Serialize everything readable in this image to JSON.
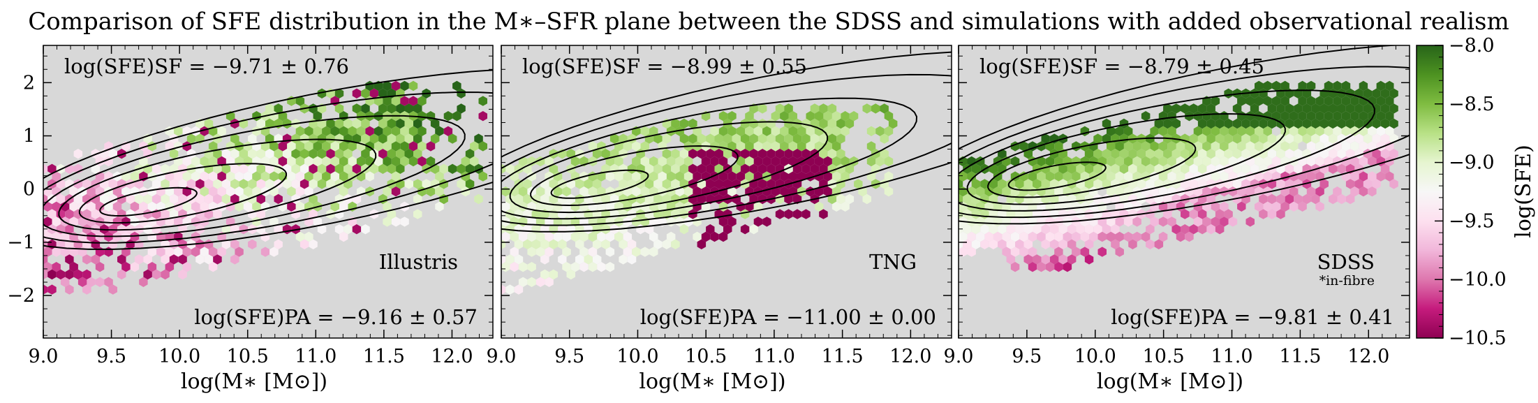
{
  "title": "Comparison of SFE distribution in the M∗–SFR plane between the SDSS and simulations with added observational realism",
  "chart_data": [
    {
      "type": "heatmap",
      "name": "Illustris",
      "label": "Illustris",
      "sub_label": "",
      "annot_sf": "log(SFE)SF = −9.71 ± 0.76",
      "annot_pa": "log(SFE)PA = −9.16 ± 0.57",
      "xlabel": "log(M∗ [M⊙])",
      "ylabel": "",
      "xlim": [
        9.0,
        12.3
      ],
      "ylim": [
        -2.8,
        2.7
      ],
      "xticks": [
        "9.0",
        "9.5",
        "10.0",
        "10.5",
        "11.0",
        "11.5",
        "12.0"
      ],
      "yticks": [
        "−2",
        "−1",
        "0",
        "1",
        "2"
      ]
    },
    {
      "type": "heatmap",
      "name": "TNG",
      "label": "TNG",
      "sub_label": "",
      "annot_sf": "log(SFE)SF = −8.99 ± 0.55",
      "annot_pa": "log(SFE)PA = −11.00 ± 0.00",
      "xlabel": "log(M∗ [M⊙])",
      "ylabel": "",
      "xlim": [
        9.0,
        12.3
      ],
      "ylim": [
        -2.8,
        2.7
      ],
      "xticks": [
        "9.0",
        "9.5",
        "10.0",
        "10.5",
        "11.0",
        "11.5",
        "12.0"
      ]
    },
    {
      "type": "heatmap",
      "name": "SDSS",
      "label": "SDSS",
      "sub_label": "*in-fibre",
      "annot_sf": "log(SFE)SF = −8.79 ± 0.45",
      "annot_pa": "log(SFE)PA = −9.81 ± 0.41",
      "xlabel": "log(M∗ [M⊙])",
      "ylabel": "",
      "xlim": [
        9.0,
        12.3
      ],
      "ylim": [
        -2.8,
        2.7
      ],
      "xticks": [
        "9.0",
        "9.5",
        "10.0",
        "10.5",
        "11.0",
        "11.5",
        "12.0"
      ]
    }
  ],
  "colorbar": {
    "label": "log(SFE)",
    "range": [
      -10.5,
      -8.0
    ],
    "ticks": [
      "−8.0",
      "−8.5",
      "−9.0",
      "−9.5",
      "−10.0",
      "−10.5"
    ],
    "colormap": "PiYG",
    "stops": [
      "#8e0152",
      "#c51b7d",
      "#de77ae",
      "#f1b6da",
      "#fde0ef",
      "#f7f7f7",
      "#e6f5d0",
      "#b8e186",
      "#7fbc41",
      "#4d9221",
      "#276419"
    ]
  },
  "colors": {
    "panel_bg": "#d8d8d8",
    "contour": "#000000"
  }
}
